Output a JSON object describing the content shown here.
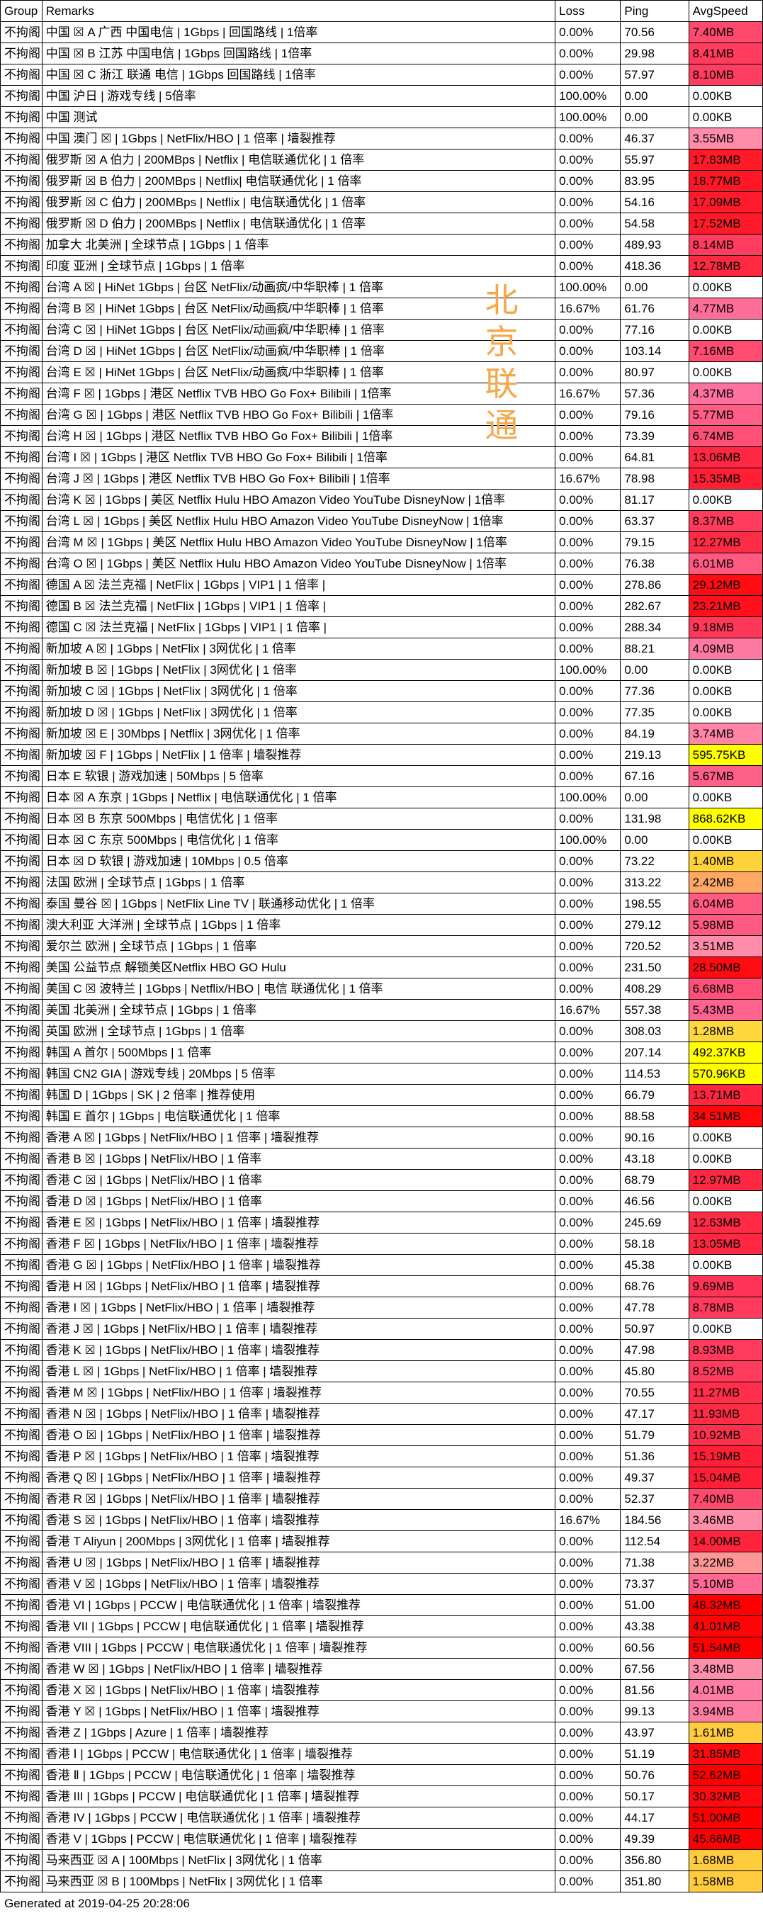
{
  "headers": {
    "group": "Group",
    "remarks": "Remarks",
    "loss": "Loss",
    "ping": "Ping",
    "speed": "AvgSpeed"
  },
  "watermark": "北京联通",
  "footer": "Generated at 2019-04-25 20:28:06",
  "speed_colors": {
    "none": "#ffffff",
    "kb_low": "#ffff00",
    "mb_low": "#ffd84a",
    "mb_pink": "#ff78b4",
    "mb_pink_deep": "#ff4e80",
    "mb_red": "#ff2a4a",
    "mb_top": "#ff0000"
  },
  "rows": [
    {
      "g": "不拘阁",
      "r": "中国 ☒ A 广西 中国电信 | 1Gbps | 回国路线 | 1倍率",
      "l": "0.00%",
      "p": "70.56",
      "s": "7.40MB",
      "c": "#ff4a6e"
    },
    {
      "g": "不拘阁",
      "r": "中国 ☒ B 江苏 中国电信 | 1Gbps 回国路线 | 1倍率",
      "l": "0.00%",
      "p": "29.98",
      "s": "8.41MB",
      "c": "#ff3c5e"
    },
    {
      "g": "不拘阁",
      "r": "中国 ☒ C 浙江 联通 电信 | 1Gbps 回国路线 | 1倍率",
      "l": "0.00%",
      "p": "57.97",
      "s": "8.10MB",
      "c": "#ff3d60"
    },
    {
      "g": "不拘阁",
      "r": "中国 沪日 | 游戏专线 | 5倍率",
      "l": "100.00%",
      "p": "0.00",
      "s": "0.00KB",
      "c": "#ffffff"
    },
    {
      "g": "不拘阁",
      "r": "中国 测试",
      "l": "100.00%",
      "p": "0.00",
      "s": "0.00KB",
      "c": "#ffffff"
    },
    {
      "g": "不拘阁",
      "r": "中国 澳门 ☒ | 1Gbps | NetFlix/HBO | 1 倍率 | 墙裂推荐",
      "l": "0.00%",
      "p": "46.37",
      "s": "3.55MB",
      "c": "#ff8ca8"
    },
    {
      "g": "不拘阁",
      "r": "俄罗斯 ☒ A 伯力 | 200MBps | Netflix | 电信联通优化 | 1 倍率",
      "l": "0.00%",
      "p": "55.97",
      "s": "17.83MB",
      "c": "#ff1a28"
    },
    {
      "g": "不拘阁",
      "r": "俄罗斯 ☒ B 伯力 | 200MBps | Netflix| 电信联通优化 | 1 倍率",
      "l": "0.00%",
      "p": "83.95",
      "s": "18.77MB",
      "c": "#ff1726"
    },
    {
      "g": "不拘阁",
      "r": "俄罗斯 ☒ C 伯力 | 200MBps | Netflix | 电信联通优化 | 1 倍率",
      "l": "0.00%",
      "p": "54.16",
      "s": "17.09MB",
      "c": "#ff1a2c"
    },
    {
      "g": "不拘阁",
      "r": "俄罗斯 ☒ D 伯力 | 200MBps | Netflix | 电信联通优化 | 1 倍率",
      "l": "0.00%",
      "p": "54.58",
      "s": "17.52MB",
      "c": "#ff1a2a"
    },
    {
      "g": "不拘阁",
      "r": "加拿大 北美洲 | 全球节点 | 1Gbps | 1 倍率",
      "l": "0.00%",
      "p": "489.93",
      "s": "8.14MB",
      "c": "#ff3d60"
    },
    {
      "g": "不拘阁",
      "r": "印度 亚洲 | 全球节点 | 1Gbps | 1 倍率",
      "l": "0.00%",
      "p": "418.36",
      "s": "12.78MB",
      "c": "#ff2a42"
    },
    {
      "g": "不拘阁",
      "r": "台湾 A ☒ | HiNet 1Gbps | 台区 NetFlix/动画疯/中华职棒 | 1 倍率",
      "l": "100.00%",
      "p": "0.00",
      "s": "0.00KB",
      "c": "#ffffff"
    },
    {
      "g": "不拘阁",
      "r": "台湾 B ☒ | HiNet 1Gbps | 台区 NetFlix/动画疯/中华职棒 | 1 倍率",
      "l": "16.67%",
      "p": "61.76",
      "s": "4.77MB",
      "c": "#ff6e98"
    },
    {
      "g": "不拘阁",
      "r": "台湾 C ☒ | HiNet 1Gbps | 台区 NetFlix/动画疯/中华职棒 | 1 倍率",
      "l": "0.00%",
      "p": "77.16",
      "s": "0.00KB",
      "c": "#ffffff"
    },
    {
      "g": "不拘阁",
      "r": "台湾 D ☒ | HiNet 1Gbps | 台区 NetFlix/动画疯/中华职棒 | 1 倍率",
      "l": "0.00%",
      "p": "103.14",
      "s": "7.16MB",
      "c": "#ff4c70"
    },
    {
      "g": "不拘阁",
      "r": "台湾 E ☒ | HiNet 1Gbps | 台区 NetFlix/动画疯/中华职棒 | 1 倍率",
      "l": "0.00%",
      "p": "80.97",
      "s": "0.00KB",
      "c": "#ffffff"
    },
    {
      "g": "不拘阁",
      "r": "台湾 F ☒ | 1Gbps | 港区 Netflix TVB HBO Go Fox+ Bilibili | 1倍率",
      "l": "16.67%",
      "p": "57.36",
      "s": "4.37MB",
      "c": "#ff72a0"
    },
    {
      "g": "不拘阁",
      "r": "台湾 G ☒ | 1Gbps | 港区 Netflix TVB HBO Go Fox+ Bilibili | 1倍率",
      "l": "0.00%",
      "p": "79.16",
      "s": "5.77MB",
      "c": "#ff5e86"
    },
    {
      "g": "不拘阁",
      "r": "台湾 H ☒ | 1Gbps | 港区 Netflix TVB HBO Go Fox+ Bilibili | 1倍率",
      "l": "0.00%",
      "p": "73.39",
      "s": "6.74MB",
      "c": "#ff5078"
    },
    {
      "g": "不拘阁",
      "r": "台湾 I ☒ | 1Gbps | 港区 Netflix TVB HBO Go Fox+ Bilibili | 1倍率",
      "l": "0.00%",
      "p": "64.81",
      "s": "13.06MB",
      "c": "#ff2842"
    },
    {
      "g": "不拘阁",
      "r": "台湾 J ☒ | 1Gbps | 港区 Netflix TVB HBO Go Fox+ Bilibili | 1倍率",
      "l": "16.67%",
      "p": "78.98",
      "s": "15.35MB",
      "c": "#ff2036"
    },
    {
      "g": "不拘阁",
      "r": "台湾 K ☒ | 1Gbps | 美区 Netflix Hulu HBO Amazon Video YouTube DisneyNow | 1倍率",
      "l": "0.00%",
      "p": "81.17",
      "s": "0.00KB",
      "c": "#ffffff"
    },
    {
      "g": "不拘阁",
      "r": "台湾 L ☒ | 1Gbps | 美区 Netflix Hulu HBO Amazon Video YouTube DisneyNow | 1倍率",
      "l": "0.00%",
      "p": "63.37",
      "s": "8.37MB",
      "c": "#ff3c5e"
    },
    {
      "g": "不拘阁",
      "r": "台湾 M ☒ | 1Gbps | 美区 Netflix Hulu HBO Amazon Video YouTube DisneyNow | 1倍率",
      "l": "0.00%",
      "p": "79.15",
      "s": "12.27MB",
      "c": "#ff2c46"
    },
    {
      "g": "不拘阁",
      "r": "台湾 O ☒ | 1Gbps | 美区 Netflix Hulu HBO Amazon Video YouTube DisneyNow | 1倍率",
      "l": "0.00%",
      "p": "76.38",
      "s": "6.01MB",
      "c": "#ff5a82"
    },
    {
      "g": "不拘阁",
      "r": "德国 A ☒ 法兰克福 | NetFlix | 1Gbps | VIP1 | 1 倍率 |",
      "l": "0.00%",
      "p": "278.86",
      "s": "29.12MB",
      "c": "#ff0c12"
    },
    {
      "g": "不拘阁",
      "r": "德国 B ☒ 法兰克福 | NetFlix | 1Gbps | VIP1 | 1 倍率 |",
      "l": "0.00%",
      "p": "282.67",
      "s": "23.21MB",
      "c": "#ff101a"
    },
    {
      "g": "不拘阁",
      "r": "德国 C ☒ 法兰克福 | NetFlix | 1Gbps | VIP1 | 1 倍率 |",
      "l": "0.00%",
      "p": "288.34",
      "s": "9.18MB",
      "c": "#ff385a"
    },
    {
      "g": "不拘阁",
      "r": "新加坡 A ☒ | 1Gbps | NetFlix | 3网优化 | 1 倍率",
      "l": "0.00%",
      "p": "88.21",
      "s": "4.09MB",
      "c": "#ff7aa2"
    },
    {
      "g": "不拘阁",
      "r": "新加坡 B ☒ | 1Gbps | NetFlix | 3网优化 | 1 倍率",
      "l": "100.00%",
      "p": "0.00",
      "s": "0.00KB",
      "c": "#ffffff"
    },
    {
      "g": "不拘阁",
      "r": "新加坡 C ☒ | 1Gbps | NetFlix | 3网优化 | 1 倍率",
      "l": "0.00%",
      "p": "77.36",
      "s": "0.00KB",
      "c": "#ffffff"
    },
    {
      "g": "不拘阁",
      "r": "新加坡 D ☒ | 1Gbps | NetFlix | 3网优化 | 1 倍率",
      "l": "0.00%",
      "p": "77.35",
      "s": "0.00KB",
      "c": "#ffffff"
    },
    {
      "g": "不拘阁",
      "r": "新加坡 ☒ E | 30Mbps | Netflix | 3网优化 | 1 倍率",
      "l": "0.00%",
      "p": "84.19",
      "s": "3.74MB",
      "c": "#ff84a6"
    },
    {
      "g": "不拘阁",
      "r": "新加坡 ☒ F | 1Gbps | NetFlix | 1 倍率 | 墙裂推荐",
      "l": "0.00%",
      "p": "219.13",
      "s": "595.75KB",
      "c": "#ffff00"
    },
    {
      "g": "不拘阁",
      "r": "日本 E 软银 | 游戏加速 | 50Mbps | 5 倍率",
      "l": "0.00%",
      "p": "67.16",
      "s": "5.67MB",
      "c": "#ff6088"
    },
    {
      "g": "不拘阁",
      "r": "日本 ☒ A 东京 | 1Gbps | Netflix | 电信联通优化 | 1 倍率",
      "l": "100.00%",
      "p": "0.00",
      "s": "0.00KB",
      "c": "#ffffff"
    },
    {
      "g": "不拘阁",
      "r": "日本 ☒ B 东京 500Mbps | 电信优化 | 1 倍率",
      "l": "0.00%",
      "p": "131.98",
      "s": "868.62KB",
      "c": "#ffff00"
    },
    {
      "g": "不拘阁",
      "r": "日本 ☒ C 东京 500Mbps | 电信优化 | 1 倍率",
      "l": "100.00%",
      "p": "0.00",
      "s": "0.00KB",
      "c": "#ffffff"
    },
    {
      "g": "不拘阁",
      "r": "日本 ☒ D 软银 | 游戏加速 | 10Mbps | 0.5 倍率",
      "l": "0.00%",
      "p": "73.22",
      "s": "1.40MB",
      "c": "#ffd23c"
    },
    {
      "g": "不拘阁",
      "r": "法国 欧洲 | 全球节点 | 1Gbps | 1 倍率",
      "l": "0.00%",
      "p": "313.22",
      "s": "2.42MB",
      "c": "#ffa866"
    },
    {
      "g": "不拘阁",
      "r": "泰国 曼谷 ☒ | 1Gbps | NetFlix Line TV | 联通移动优化 | 1 倍率",
      "l": "0.00%",
      "p": "198.55",
      "s": "6.04MB",
      "c": "#ff5a82"
    },
    {
      "g": "不拘阁",
      "r": "澳大利亚 大洋洲 | 全球节点 | 1Gbps | 1 倍率",
      "l": "0.00%",
      "p": "279.12",
      "s": "5.98MB",
      "c": "#ff5a82"
    },
    {
      "g": "不拘阁",
      "r": "爱尔兰 欧洲 | 全球节点 | 1Gbps | 1 倍率",
      "l": "0.00%",
      "p": "720.52",
      "s": "3.51MB",
      "c": "#ff8ca8"
    },
    {
      "g": "不拘阁",
      "r": "美国 公益节点 解锁美区Netflix HBO GO Hulu",
      "l": "0.00%",
      "p": "231.50",
      "s": "28.50MB",
      "c": "#ff0c12"
    },
    {
      "g": "不拘阁",
      "r": "美国 C ☒ 波特兰 | 1Gbps | Netflix/HBO | 电信 联通优化 | 1 倍率",
      "l": "0.00%",
      "p": "408.29",
      "s": "6.68MB",
      "c": "#ff5078"
    },
    {
      "g": "不拘阁",
      "r": "美国 北美洲 | 全球节点 | 1Gbps | 1 倍率",
      "l": "16.67%",
      "p": "557.38",
      "s": "5.43MB",
      "c": "#ff6490"
    },
    {
      "g": "不拘阁",
      "r": "英国 欧洲 | 全球节点 | 1Gbps | 1 倍率",
      "l": "0.00%",
      "p": "308.03",
      "s": "1.28MB",
      "c": "#ffd83e"
    },
    {
      "g": "不拘阁",
      "r": "韩国 A 首尔 | 500Mbps | 1 倍率",
      "l": "0.00%",
      "p": "207.14",
      "s": "492.37KB",
      "c": "#ffff00"
    },
    {
      "g": "不拘阁",
      "r": "韩国 CN2 GIA | 游戏专线 | 20Mbps | 5 倍率",
      "l": "0.00%",
      "p": "114.53",
      "s": "570.96KB",
      "c": "#ffff00"
    },
    {
      "g": "不拘阁",
      "r": "韩国 D | 1Gbps | SK | 2 倍率 | 推荐使用",
      "l": "0.00%",
      "p": "66.79",
      "s": "13.71MB",
      "c": "#ff263e"
    },
    {
      "g": "不拘阁",
      "r": "韩国 E 首尔 | 1Gbps | 电信联通优化 | 1 倍率",
      "l": "0.00%",
      "p": "88.58",
      "s": "34.51MB",
      "c": "#ff080c"
    },
    {
      "g": "不拘阁",
      "r": "香港 A ☒ | 1Gbps | NetFlix/HBO | 1 倍率 | 墙裂推荐",
      "l": "0.00%",
      "p": "90.16",
      "s": "0.00KB",
      "c": "#ffffff"
    },
    {
      "g": "不拘阁",
      "r": "香港 B ☒ | 1Gbps | NetFlix/HBO | 1 倍率",
      "l": "0.00%",
      "p": "43.18",
      "s": "0.00KB",
      "c": "#ffffff"
    },
    {
      "g": "不拘阁",
      "r": "香港 C ☒ | 1Gbps | NetFlix/HBO | 1 倍率",
      "l": "0.00%",
      "p": "68.79",
      "s": "12.97MB",
      "c": "#ff2842"
    },
    {
      "g": "不拘阁",
      "r": "香港 D ☒ | 1Gbps | NetFlix/HBO | 1 倍率",
      "l": "0.00%",
      "p": "46.56",
      "s": "0.00KB",
      "c": "#ffffff"
    },
    {
      "g": "不拘阁",
      "r": "香港 E ☒ | 1Gbps | NetFlix/HBO | 1 倍率 | 墙裂推荐",
      "l": "0.00%",
      "p": "245.69",
      "s": "12.63MB",
      "c": "#ff2a44"
    },
    {
      "g": "不拘阁",
      "r": "香港 F ☒ | 1Gbps | NetFlix/HBO | 1 倍率 | 墙裂推荐",
      "l": "0.00%",
      "p": "58.18",
      "s": "13.05MB",
      "c": "#ff2842"
    },
    {
      "g": "不拘阁",
      "r": "香港 G ☒ | 1Gbps | NetFlix/HBO | 1 倍率 | 墙裂推荐",
      "l": "0.00%",
      "p": "45.38",
      "s": "0.00KB",
      "c": "#ffffff"
    },
    {
      "g": "不拘阁",
      "r": "香港 H ☒ | 1Gbps | NetFlix/HBO | 1 倍率 | 墙裂推荐",
      "l": "0.00%",
      "p": "68.76",
      "s": "9.69MB",
      "c": "#ff3456"
    },
    {
      "g": "不拘阁",
      "r": "香港 I ☒ | 1Gbps | NetFlix/HBO | 1 倍率 | 墙裂推荐",
      "l": "0.00%",
      "p": "47.78",
      "s": "8.78MB",
      "c": "#ff3a5c"
    },
    {
      "g": "不拘阁",
      "r": "香港 J ☒ | 1Gbps | NetFlix/HBO | 1 倍率 | 墙裂推荐",
      "l": "0.00%",
      "p": "50.97",
      "s": "0.00KB",
      "c": "#ffffff"
    },
    {
      "g": "不拘阁",
      "r": "香港 K ☒ | 1Gbps | NetFlix/HBO | 1 倍率 | 墙裂推荐",
      "l": "0.00%",
      "p": "47.98",
      "s": "8.93MB",
      "c": "#ff3a5c"
    },
    {
      "g": "不拘阁",
      "r": "香港 L ☒ | 1Gbps | NetFlix/HBO | 1 倍率 | 墙裂推荐",
      "l": "0.00%",
      "p": "45.80",
      "s": "8.52MB",
      "c": "#ff3b5e"
    },
    {
      "g": "不拘阁",
      "r": "香港 M ☒ | 1Gbps | NetFlix/HBO | 1 倍率 | 墙裂推荐",
      "l": "0.00%",
      "p": "70.55",
      "s": "11.27MB",
      "c": "#ff2e4a"
    },
    {
      "g": "不拘阁",
      "r": "香港 N ☒ | 1Gbps | NetFlix/HBO | 1 倍率 | 墙裂推荐",
      "l": "0.00%",
      "p": "47.17",
      "s": "11.93MB",
      "c": "#ff2c46"
    },
    {
      "g": "不拘阁",
      "r": "香港 O ☒ | 1Gbps | NetFlix/HBO | 1 倍率 | 墙裂推荐",
      "l": "0.00%",
      "p": "51.79",
      "s": "10.92MB",
      "c": "#ff304c"
    },
    {
      "g": "不拘阁",
      "r": "香港 P ☒ | 1Gbps | NetFlix/HBO | 1 倍率 | 墙裂推荐",
      "l": "0.00%",
      "p": "51.36",
      "s": "15.19MB",
      "c": "#ff2038"
    },
    {
      "g": "不拘阁",
      "r": "香港 Q ☒ | 1Gbps | NetFlix/HBO | 1 倍率 | 墙裂推荐",
      "l": "0.00%",
      "p": "49.37",
      "s": "15.04MB",
      "c": "#ff2038"
    },
    {
      "g": "不拘阁",
      "r": "香港 R ☒ | 1Gbps | NetFlix/HBO | 1 倍率 | 墙裂推荐",
      "l": "0.00%",
      "p": "52.37",
      "s": "7.40MB",
      "c": "#ff4a6e"
    },
    {
      "g": "不拘阁",
      "r": "香港 S ☒ | 1Gbps | NetFlix/HBO | 1 倍率 | 墙裂推荐",
      "l": "16.67%",
      "p": "184.56",
      "s": "3.46MB",
      "c": "#ff8eaa"
    },
    {
      "g": "不拘阁",
      "r": "香港 T Aliyun | 200Mbps | 3网优化 | 1 倍率 | 墙裂推荐",
      "l": "0.00%",
      "p": "112.54",
      "s": "14.00MB",
      "c": "#ff243c"
    },
    {
      "g": "不拘阁",
      "r": "香港 U ☒ | 1Gbps | NetFlix/HBO | 1 倍率 | 墙裂推荐",
      "l": "0.00%",
      "p": "71.38",
      "s": "3.22MB",
      "c": "#ff9696"
    },
    {
      "g": "不拘阁",
      "r": "香港 V ☒ | 1Gbps | NetFlix/HBO | 1 倍率 | 墙裂推荐",
      "l": "0.00%",
      "p": "73.37",
      "s": "5.10MB",
      "c": "#ff6a94"
    },
    {
      "g": "不拘阁",
      "r": "香港 VI | 1Gbps | PCCW | 电信联通优化 | 1 倍率 | 墙裂推荐",
      "l": "0.00%",
      "p": "51.00",
      "s": "48.32MB",
      "c": "#ff0000"
    },
    {
      "g": "不拘阁",
      "r": "香港 VII | 1Gbps | PCCW | 电信联通优化 | 1 倍率 | 墙裂推荐",
      "l": "0.00%",
      "p": "43.38",
      "s": "41.01MB",
      "c": "#ff0406"
    },
    {
      "g": "不拘阁",
      "r": "香港 VIII | 1Gbps | PCCW | 电信联通优化 | 1 倍率 | 墙裂推荐",
      "l": "0.00%",
      "p": "60.56",
      "s": "51.54MB",
      "c": "#ff0000"
    },
    {
      "g": "不拘阁",
      "r": "香港 W ☒ | 1Gbps | NetFlix/HBO | 1 倍率 | 墙裂推荐",
      "l": "0.00%",
      "p": "67.56",
      "s": "3.48MB",
      "c": "#ff8eaa"
    },
    {
      "g": "不拘阁",
      "r": "香港 X ☒ | 1Gbps | NetFlix/HBO | 1 倍率 | 墙裂推荐",
      "l": "0.00%",
      "p": "81.56",
      "s": "4.01MB",
      "c": "#ff7ca4"
    },
    {
      "g": "不拘阁",
      "r": "香港 Y ☒ | 1Gbps | NetFlix/HBO | 1 倍率 | 墙裂推荐",
      "l": "0.00%",
      "p": "99.13",
      "s": "3.94MB",
      "c": "#ff7ea4"
    },
    {
      "g": "不拘阁",
      "r": "香港 Z | 1Gbps | Azure | 1 倍率 | 墙裂推荐",
      "l": "0.00%",
      "p": "43.97",
      "s": "1.61MB",
      "c": "#ffcc40"
    },
    {
      "g": "不拘阁",
      "r": "香港 Ⅰ | 1Gbps | PCCW | 电信联通优化 | 1 倍率 | 墙裂推荐",
      "l": "0.00%",
      "p": "51.19",
      "s": "31.85MB",
      "c": "#ff0a0e"
    },
    {
      "g": "不拘阁",
      "r": "香港 Ⅱ | 1Gbps | PCCW | 电信联通优化 | 1 倍率 | 墙裂推荐",
      "l": "0.00%",
      "p": "50.76",
      "s": "52.62MB",
      "c": "#ff0000"
    },
    {
      "g": "不拘阁",
      "r": "香港 III | 1Gbps | PCCW | 电信联通优化 | 1 倍率 | 墙裂推荐",
      "l": "0.00%",
      "p": "50.17",
      "s": "30.32MB",
      "c": "#ff0a10"
    },
    {
      "g": "不拘阁",
      "r": "香港 IV | 1Gbps | PCCW | 电信联通优化 | 1 倍率 | 墙裂推荐",
      "l": "0.00%",
      "p": "44.17",
      "s": "51.00MB",
      "c": "#ff0000"
    },
    {
      "g": "不拘阁",
      "r": "香港 V | 1Gbps | PCCW | 电信联通优化 | 1 倍率 | 墙裂推荐",
      "l": "0.00%",
      "p": "49.39",
      "s": "45.66MB",
      "c": "#ff0002"
    },
    {
      "g": "不拘阁",
      "r": "马来西亚 ☒ A | 100Mbps | NetFlix | 3网优化 | 1 倍率",
      "l": "0.00%",
      "p": "356.80",
      "s": "1.68MB",
      "c": "#ffcc40"
    },
    {
      "g": "不拘阁",
      "r": "马来西亚 ☒ B | 100Mbps | NetFlix | 3网优化 | 1 倍率",
      "l": "0.00%",
      "p": "351.80",
      "s": "1.58MB",
      "c": "#ffcc40"
    }
  ]
}
